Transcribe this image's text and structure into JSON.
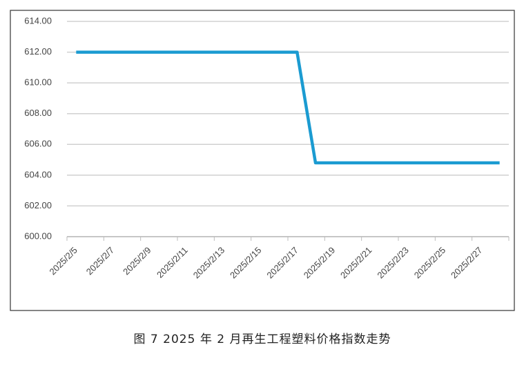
{
  "chart_data": {
    "type": "line",
    "caption": "图 7  2025 年 2 月再生工程塑料价格指数走势",
    "categories": [
      "2025/2/5",
      null,
      "2025/2/7",
      null,
      "2025/2/9",
      null,
      "2025/2/11",
      null,
      "2025/2/13",
      null,
      "2025/2/15",
      null,
      "2025/2/17",
      null,
      "2025/2/19",
      null,
      "2025/2/21",
      null,
      "2025/2/23",
      null,
      "2025/2/25",
      null,
      "2025/2/27",
      null
    ],
    "series": [
      {
        "color": "#1b9bd1",
        "values": [
          612,
          612,
          612,
          612,
          612,
          612,
          612,
          612,
          612,
          612,
          612,
          612,
          612,
          604.8,
          604.8,
          604.8,
          604.8,
          604.8,
          604.8,
          604.8,
          604.8,
          604.8,
          604.8,
          604.8
        ]
      }
    ],
    "ylim": [
      600,
      614
    ],
    "yticks": [
      {
        "value": 600,
        "label": "600.00"
      },
      {
        "value": 602,
        "label": "602.00"
      },
      {
        "value": 604,
        "label": "604.00"
      },
      {
        "value": 606,
        "label": "606.00"
      },
      {
        "value": 608,
        "label": "608.00"
      },
      {
        "value": 610,
        "label": "610.00"
      },
      {
        "value": 612,
        "label": "612.00"
      },
      {
        "value": 614,
        "label": "614.00"
      }
    ],
    "grid": true
  }
}
